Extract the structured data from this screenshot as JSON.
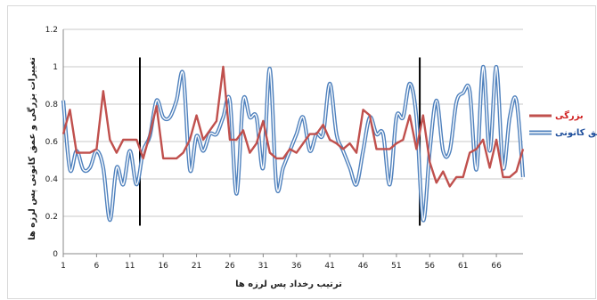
{
  "chart_data": {
    "type": "line",
    "title": "",
    "xlabel": "ترتیب رخداد پس لرزه ها",
    "ylabel": "تغییرات بزرگی و عمق کانونی پس لرزه ها",
    "xlim": [
      1,
      70
    ],
    "ylim": [
      0,
      1.2
    ],
    "y_ticks": [
      "0",
      "0.2",
      "0.4",
      "0.6",
      "0.8",
      "1",
      "1.2"
    ],
    "x_ticks": [
      1,
      6,
      11,
      16,
      21,
      26,
      31,
      36,
      41,
      46,
      51,
      56,
      61,
      66
    ],
    "grid": true,
    "legend_position": "right",
    "markers": [
      12.5,
      54.5
    ],
    "series": [
      {
        "name": "بزرگی",
        "color": "#c0504d",
        "style": "solid",
        "x": [
          1,
          2,
          3,
          4,
          5,
          6,
          7,
          8,
          9,
          10,
          11,
          12,
          13,
          14,
          15,
          16,
          17,
          18,
          19,
          20,
          21,
          22,
          23,
          24,
          25,
          26,
          27,
          28,
          29,
          30,
          31,
          32,
          33,
          34,
          35,
          36,
          37,
          38,
          39,
          40,
          41,
          42,
          43,
          44,
          45,
          46,
          47,
          48,
          49,
          50,
          51,
          52,
          53,
          54,
          55,
          56,
          57,
          58,
          59,
          60,
          61,
          62,
          63,
          64,
          65,
          66,
          67,
          68,
          69,
          70
        ],
        "values": [
          0.64,
          0.77,
          0.54,
          0.54,
          0.54,
          0.56,
          0.87,
          0.61,
          0.54,
          0.61,
          0.61,
          0.61,
          0.51,
          0.64,
          0.79,
          0.51,
          0.51,
          0.51,
          0.54,
          0.61,
          0.74,
          0.61,
          0.66,
          0.71,
          1.0,
          0.61,
          0.61,
          0.66,
          0.54,
          0.59,
          0.71,
          0.54,
          0.51,
          0.51,
          0.56,
          0.54,
          0.59,
          0.64,
          0.64,
          0.69,
          0.61,
          0.59,
          0.56,
          0.59,
          0.54,
          0.77,
          0.74,
          0.56,
          0.56,
          0.56,
          0.59,
          0.61,
          0.74,
          0.56,
          0.74,
          0.49,
          0.38,
          0.44,
          0.36,
          0.41,
          0.41,
          0.54,
          0.56,
          0.61,
          0.46,
          0.61,
          0.41,
          0.41,
          0.44,
          0.56
        ]
      },
      {
        "name": "عمق کانونی",
        "color": "#4f81bd",
        "style": "double",
        "x": [
          1,
          2,
          3,
          4,
          5,
          6,
          7,
          8,
          9,
          10,
          11,
          12,
          13,
          14,
          15,
          16,
          17,
          18,
          19,
          20,
          21,
          22,
          23,
          24,
          25,
          26,
          27,
          28,
          29,
          30,
          31,
          32,
          33,
          34,
          35,
          36,
          37,
          38,
          39,
          40,
          41,
          42,
          43,
          44,
          45,
          46,
          47,
          48,
          49,
          50,
          51,
          52,
          53,
          54,
          55,
          56,
          57,
          58,
          59,
          60,
          61,
          62,
          63,
          64,
          65,
          66,
          67,
          68,
          69,
          70
        ],
        "values": [
          0.82,
          0.45,
          0.55,
          0.45,
          0.46,
          0.55,
          0.46,
          0.18,
          0.46,
          0.37,
          0.55,
          0.37,
          0.55,
          0.63,
          0.82,
          0.73,
          0.73,
          0.82,
          0.96,
          0.45,
          0.63,
          0.55,
          0.64,
          0.64,
          0.73,
          0.82,
          0.32,
          0.82,
          0.73,
          0.73,
          0.46,
          0.99,
          0.36,
          0.46,
          0.55,
          0.64,
          0.73,
          0.55,
          0.64,
          0.64,
          0.91,
          0.64,
          0.55,
          0.46,
          0.37,
          0.55,
          0.73,
          0.64,
          0.64,
          0.37,
          0.73,
          0.73,
          0.91,
          0.73,
          0.18,
          0.55,
          0.82,
          0.55,
          0.55,
          0.81,
          0.86,
          0.87,
          0.45,
          1.0,
          0.55,
          1.0,
          0.46,
          0.73,
          0.82,
          0.41
        ]
      }
    ]
  }
}
